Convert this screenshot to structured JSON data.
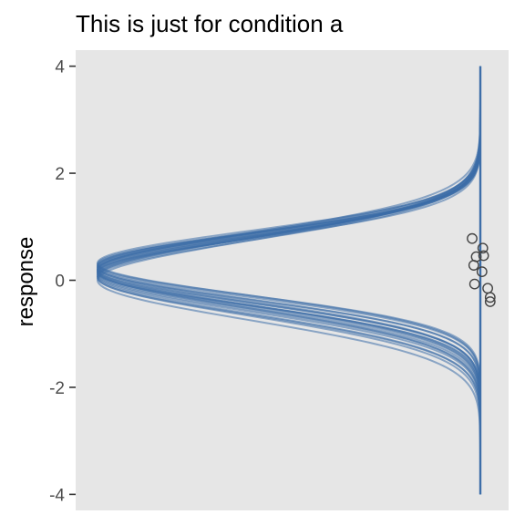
{
  "chart_data": {
    "type": "density",
    "title": "This is just for condition a",
    "xlabel": "",
    "ylabel": "response",
    "ylim": [
      -4.3,
      4.3
    ],
    "yticks": [
      -4,
      -2,
      0,
      2,
      4
    ],
    "ytick_labels": [
      "-4",
      "-2",
      "0",
      "2",
      "4"
    ],
    "grid": false,
    "legend": "none",
    "colors": {
      "panel_background": "#e6e6e6",
      "curve": "#3d6ea8",
      "point_stroke": "#444444"
    },
    "observed_points": [
      {
        "x_offset": -0.1,
        "y": 0.78
      },
      {
        "x_offset": 0.03,
        "y": 0.6
      },
      {
        "x_offset": -0.05,
        "y": 0.44
      },
      {
        "x_offset": 0.04,
        "y": 0.46
      },
      {
        "x_offset": -0.08,
        "y": 0.28
      },
      {
        "x_offset": 0.02,
        "y": 0.16
      },
      {
        "x_offset": -0.07,
        "y": -0.07
      },
      {
        "x_offset": 0.09,
        "y": -0.15
      },
      {
        "x_offset": 0.12,
        "y": -0.32
      },
      {
        "x_offset": 0.12,
        "y": -0.4
      }
    ],
    "draws": [
      {
        "mu": 0.2,
        "sigma": 0.62
      },
      {
        "mu": 0.14,
        "sigma": 0.66
      },
      {
        "mu": 0.24,
        "sigma": 0.6
      },
      {
        "mu": 0.08,
        "sigma": 0.7
      },
      {
        "mu": 0.18,
        "sigma": 0.64
      },
      {
        "mu": 0.3,
        "sigma": 0.58
      },
      {
        "mu": 0.1,
        "sigma": 0.68
      },
      {
        "mu": 0.22,
        "sigma": 0.63
      },
      {
        "mu": 0.16,
        "sigma": 0.65
      },
      {
        "mu": 0.26,
        "sigma": 0.61
      },
      {
        "mu": 0.12,
        "sigma": 0.67
      },
      {
        "mu": 0.28,
        "sigma": 0.59
      },
      {
        "mu": 0.06,
        "sigma": 0.72
      },
      {
        "mu": 0.2,
        "sigma": 0.66
      },
      {
        "mu": 0.15,
        "sigma": 0.62
      },
      {
        "mu": 0.32,
        "sigma": 0.6
      },
      {
        "mu": 0.05,
        "sigma": 0.69
      },
      {
        "mu": 0.0,
        "sigma": 0.74
      },
      {
        "mu": 0.18,
        "sigma": 0.7
      },
      {
        "mu": 0.25,
        "sigma": 0.64
      }
    ]
  }
}
